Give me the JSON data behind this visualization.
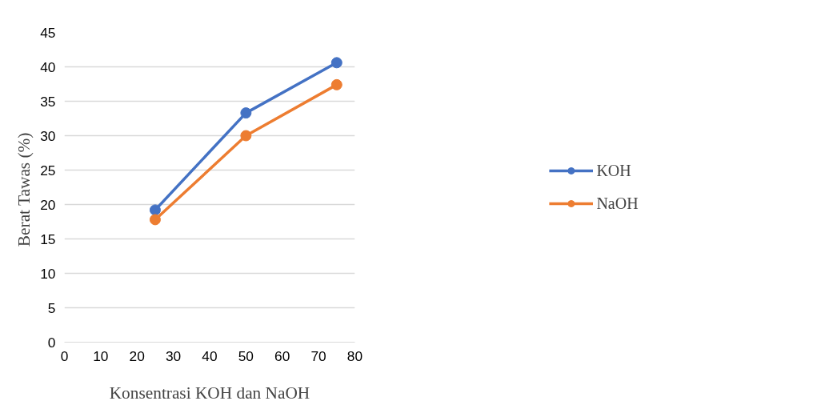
{
  "chart_data": {
    "type": "line",
    "xlabel": "Konsentrasi KOH dan NaOH",
    "ylabel": "Berat  Tawas (%)",
    "x": [
      25,
      50,
      75
    ],
    "series": [
      {
        "name": "KOH",
        "color": "#4472c4",
        "values": [
          19.2,
          33.3,
          40.6
        ]
      },
      {
        "name": "NaOH",
        "color": "#ed7d31",
        "values": [
          17.8,
          30,
          37.4
        ]
      }
    ],
    "xlim": [
      0,
      80
    ],
    "xticks": [
      0,
      10,
      20,
      30,
      40,
      50,
      60,
      70,
      80
    ],
    "ylim": [
      0,
      45
    ],
    "yticks": [
      0,
      5,
      10,
      15,
      20,
      25,
      30,
      35,
      40,
      45
    ],
    "grid": "y",
    "legend": "right",
    "marker": "circle",
    "line_style": "solid"
  }
}
